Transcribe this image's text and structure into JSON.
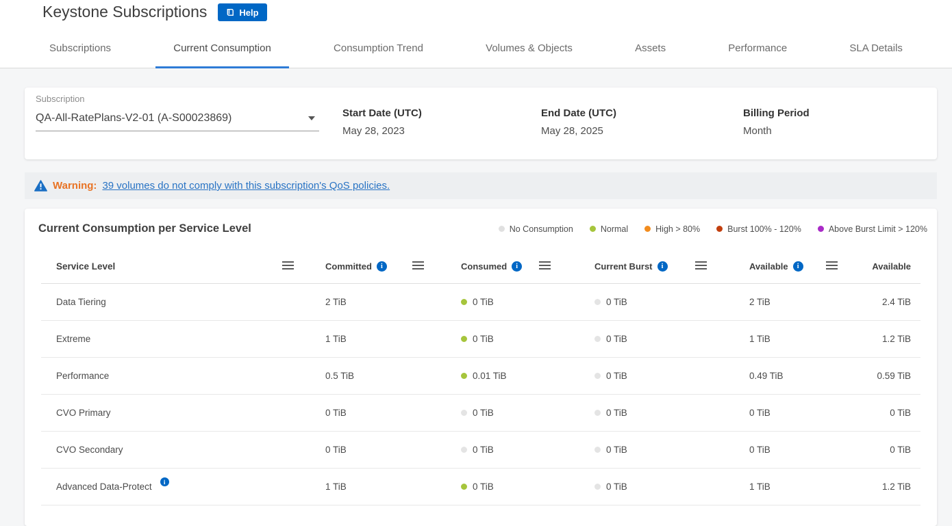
{
  "page": {
    "title": "Keystone Subscriptions",
    "help_label": "Help"
  },
  "tabs": [
    {
      "label": "Subscriptions",
      "active": false
    },
    {
      "label": "Current Consumption",
      "active": true
    },
    {
      "label": "Consumption Trend",
      "active": false
    },
    {
      "label": "Volumes & Objects",
      "active": false
    },
    {
      "label": "Assets",
      "active": false
    },
    {
      "label": "Performance",
      "active": false
    },
    {
      "label": "SLA Details",
      "active": false
    }
  ],
  "subscription_panel": {
    "dropdown_label": "Subscription",
    "dropdown_value": "QA-All-RatePlans-V2-01 (A-S00023869)",
    "fields": [
      {
        "label": "Start Date (UTC)",
        "value": "May 28, 2023"
      },
      {
        "label": "End Date (UTC)",
        "value": "May 28, 2025"
      },
      {
        "label": "Billing Period",
        "value": "Month"
      }
    ]
  },
  "warning": {
    "label": "Warning:",
    "link_text": "39 volumes do not comply with this subscription's QoS policies."
  },
  "consumption_section": {
    "title": "Current Consumption per Service Level",
    "legend": [
      {
        "label": "No Consumption",
        "color": "#e0e0e0"
      },
      {
        "label": "Normal",
        "color": "#a6c53c"
      },
      {
        "label": "High > 80%",
        "color": "#f28c1e"
      },
      {
        "label": "Burst 100% - 120%",
        "color": "#c23f0e"
      },
      {
        "label": "Above Burst Limit > 120%",
        "color": "#a92bc7"
      }
    ],
    "table": {
      "headers": [
        {
          "label": "Service Level",
          "info": false,
          "menu": true
        },
        {
          "label": "Committed",
          "info": true,
          "menu": true
        },
        {
          "label": "Consumed",
          "info": true,
          "menu": true
        },
        {
          "label": "Current Burst",
          "info": true,
          "menu": true
        },
        {
          "label": "Available",
          "info": true,
          "menu": true
        },
        {
          "label": "Available",
          "info": false,
          "menu": false
        }
      ],
      "status_colors": {
        "normal": "#a6c53c",
        "none": "#e4e4e4"
      },
      "rows": [
        {
          "service_level": "Data Tiering",
          "info": false,
          "committed": "2 TiB",
          "consumed": "0 TiB",
          "consumed_status": "normal",
          "current_burst": "0 TiB",
          "burst_status": "none",
          "available": "2 TiB",
          "available2": "2.4 TiB"
        },
        {
          "service_level": "Extreme",
          "info": false,
          "committed": "1 TiB",
          "consumed": "0 TiB",
          "consumed_status": "normal",
          "current_burst": "0 TiB",
          "burst_status": "none",
          "available": "1 TiB",
          "available2": "1.2 TiB"
        },
        {
          "service_level": "Performance",
          "info": false,
          "committed": "0.5 TiB",
          "consumed": "0.01 TiB",
          "consumed_status": "normal",
          "current_burst": "0 TiB",
          "burst_status": "none",
          "available": "0.49 TiB",
          "available2": "0.59 TiB"
        },
        {
          "service_level": "CVO Primary",
          "info": false,
          "committed": "0 TiB",
          "consumed": "0 TiB",
          "consumed_status": "none",
          "current_burst": "0 TiB",
          "burst_status": "none",
          "available": "0 TiB",
          "available2": "0 TiB"
        },
        {
          "service_level": "CVO Secondary",
          "info": false,
          "committed": "0 TiB",
          "consumed": "0 TiB",
          "consumed_status": "none",
          "current_burst": "0 TiB",
          "burst_status": "none",
          "available": "0 TiB",
          "available2": "0 TiB"
        },
        {
          "service_level": "Advanced Data-Protect",
          "info": true,
          "committed": "1 TiB",
          "consumed": "0 TiB",
          "consumed_status": "normal",
          "current_burst": "0 TiB",
          "burst_status": "none",
          "available": "1 TiB",
          "available2": "1.2 TiB"
        }
      ]
    }
  },
  "colors": {
    "accent_blue": "#0067c5",
    "tab_underline_blue": "#2e7cd6",
    "warning_orange": "#e87324",
    "link_blue": "#2873c4"
  }
}
